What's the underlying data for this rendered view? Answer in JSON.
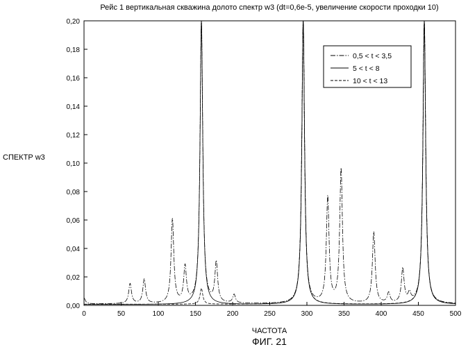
{
  "chart_data": {
    "type": "line",
    "title": "Рейс 1 вертикальная скважина долото спектр w3 (dt=0,6e-5, увеличение скорости проходки 10)",
    "xlabel": "ЧАСТОТА",
    "ylabel": "СПЕКТР w3",
    "figure_label": "ФИГ. 21",
    "xlim": [
      0,
      500
    ],
    "ylim": [
      0,
      0.2
    ],
    "x_ticks": [
      0,
      50,
      100,
      150,
      200,
      250,
      300,
      350,
      400,
      450,
      500
    ],
    "x_tick_labels": [
      "0",
      "50",
      "100",
      "150",
      "200",
      "250",
      "300",
      "350",
      "400",
      "450",
      "500"
    ],
    "y_ticks": [
      0,
      0.02,
      0.04,
      0.06,
      0.08,
      0.1,
      0.12,
      0.14,
      0.16,
      0.18,
      0.2
    ],
    "y_tick_labels": [
      "0,00",
      "0,02",
      "0,04",
      "0,06",
      "0,08",
      "0,10",
      "0,12",
      "0,14",
      "0,16",
      "0,18",
      "0,20"
    ],
    "legend_position": "top-right",
    "grid": false,
    "colors": {
      "line": "#000000",
      "background": "#ffffff"
    },
    "series": [
      {
        "name": "0,5 < t < 3,5",
        "style": "dash-dot",
        "baseline": 0.001,
        "peaks": [
          {
            "x": 0,
            "y": 0.005
          },
          {
            "x": 62,
            "y": 0.015
          },
          {
            "x": 81,
            "y": 0.018
          },
          {
            "x": 119,
            "y": 0.06
          },
          {
            "x": 136,
            "y": 0.026
          },
          {
            "x": 158,
            "y": 0.2
          },
          {
            "x": 178,
            "y": 0.029
          },
          {
            "x": 202,
            "y": 0.007
          },
          {
            "x": 295,
            "y": 0.2
          },
          {
            "x": 328,
            "y": 0.075
          },
          {
            "x": 346,
            "y": 0.095
          },
          {
            "x": 390,
            "y": 0.051
          },
          {
            "x": 410,
            "y": 0.008
          },
          {
            "x": 429,
            "y": 0.025
          },
          {
            "x": 438,
            "y": 0.007
          },
          {
            "x": 458,
            "y": 0.2
          }
        ]
      },
      {
        "name": "5 < t < 8",
        "style": "solid",
        "baseline": 0.0006,
        "peaks": [
          {
            "x": 158,
            "y": 0.2
          },
          {
            "x": 295,
            "y": 0.2
          },
          {
            "x": 458,
            "y": 0.2
          }
        ]
      },
      {
        "name": "10 < t < 13",
        "style": "dashed",
        "baseline": 0.0008,
        "peaks": [
          {
            "x": 158,
            "y": 0.012
          },
          {
            "x": 295,
            "y": 0.2
          },
          {
            "x": 458,
            "y": 0.2
          }
        ]
      }
    ]
  }
}
